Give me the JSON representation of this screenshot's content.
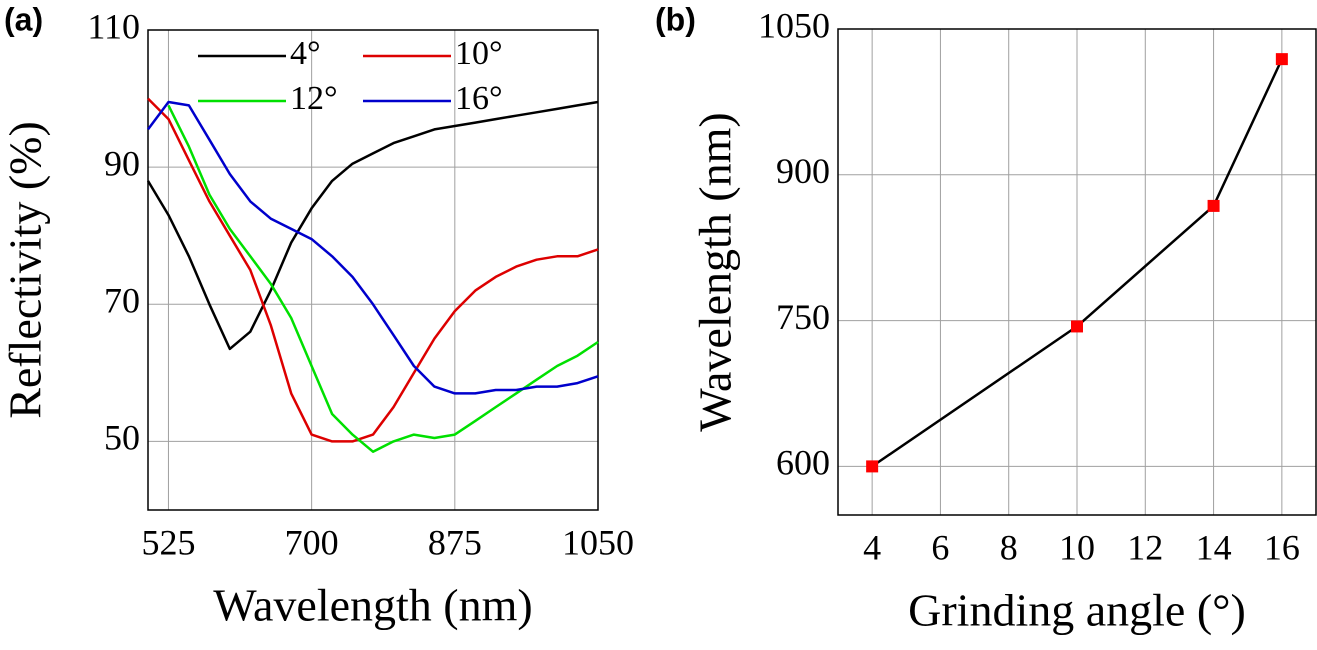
{
  "chart_data": [
    {
      "type": "line",
      "panel_label": "(a)",
      "xlabel": "Wavelength (nm)",
      "ylabel": "Reflectivity (%)",
      "xlim": [
        500,
        1050
      ],
      "xticks": [
        525,
        700,
        875,
        1050
      ],
      "ylim": [
        40,
        110
      ],
      "yticks": [
        50,
        70,
        90,
        110
      ],
      "grid": true,
      "legend": "upper center",
      "x": [
        500,
        525,
        550,
        575,
        600,
        625,
        650,
        675,
        700,
        725,
        750,
        775,
        800,
        825,
        850,
        875,
        900,
        925,
        950,
        975,
        1000,
        1025,
        1050
      ],
      "series": [
        {
          "name": "4°",
          "color": "#000000",
          "values": [
            88,
            83,
            77,
            70,
            63.5,
            66,
            72,
            79,
            84,
            88,
            90.5,
            92,
            93.5,
            94.5,
            95.5,
            96,
            96.5,
            97,
            97.5,
            98,
            98.5,
            99,
            99.5
          ]
        },
        {
          "name": "10°",
          "color": "#dd0000",
          "values": [
            100,
            97,
            91,
            85,
            80,
            75,
            67,
            57,
            51,
            50,
            50,
            51,
            55,
            60,
            65,
            69,
            72,
            74,
            75.5,
            76.5,
            77,
            77,
            78
          ]
        },
        {
          "name": "12°",
          "color": "#00e000",
          "values": [
            null,
            99,
            93,
            86,
            81,
            77,
            73,
            68,
            61,
            54,
            51,
            48.5,
            50,
            51,
            50.5,
            51,
            53,
            55,
            57,
            59,
            61,
            62.5,
            64.5
          ]
        },
        {
          "name": "16°",
          "color": "#0000cc",
          "values": [
            95.5,
            99.5,
            99,
            94,
            89,
            85,
            82.5,
            81,
            79.5,
            77,
            74,
            70,
            65.5,
            61,
            58,
            57,
            57,
            57.5,
            57.5,
            58,
            58,
            58.5,
            59.5
          ]
        }
      ]
    },
    {
      "type": "line",
      "panel_label": "(b)",
      "xlabel": "Grinding angle (°)",
      "ylabel": "Wavelength (nm)",
      "xlim": [
        3,
        17
      ],
      "xticks": [
        4,
        6,
        8,
        10,
        12,
        14,
        16
      ],
      "ylim": [
        550,
        1050
      ],
      "yticks": [
        600,
        750,
        900,
        1050
      ],
      "grid": true,
      "x": [
        4,
        10,
        14,
        16
      ],
      "values": [
        600,
        744,
        868,
        1019
      ],
      "color": "#000000",
      "marker_color": "#ff0000",
      "marker": "square"
    }
  ]
}
